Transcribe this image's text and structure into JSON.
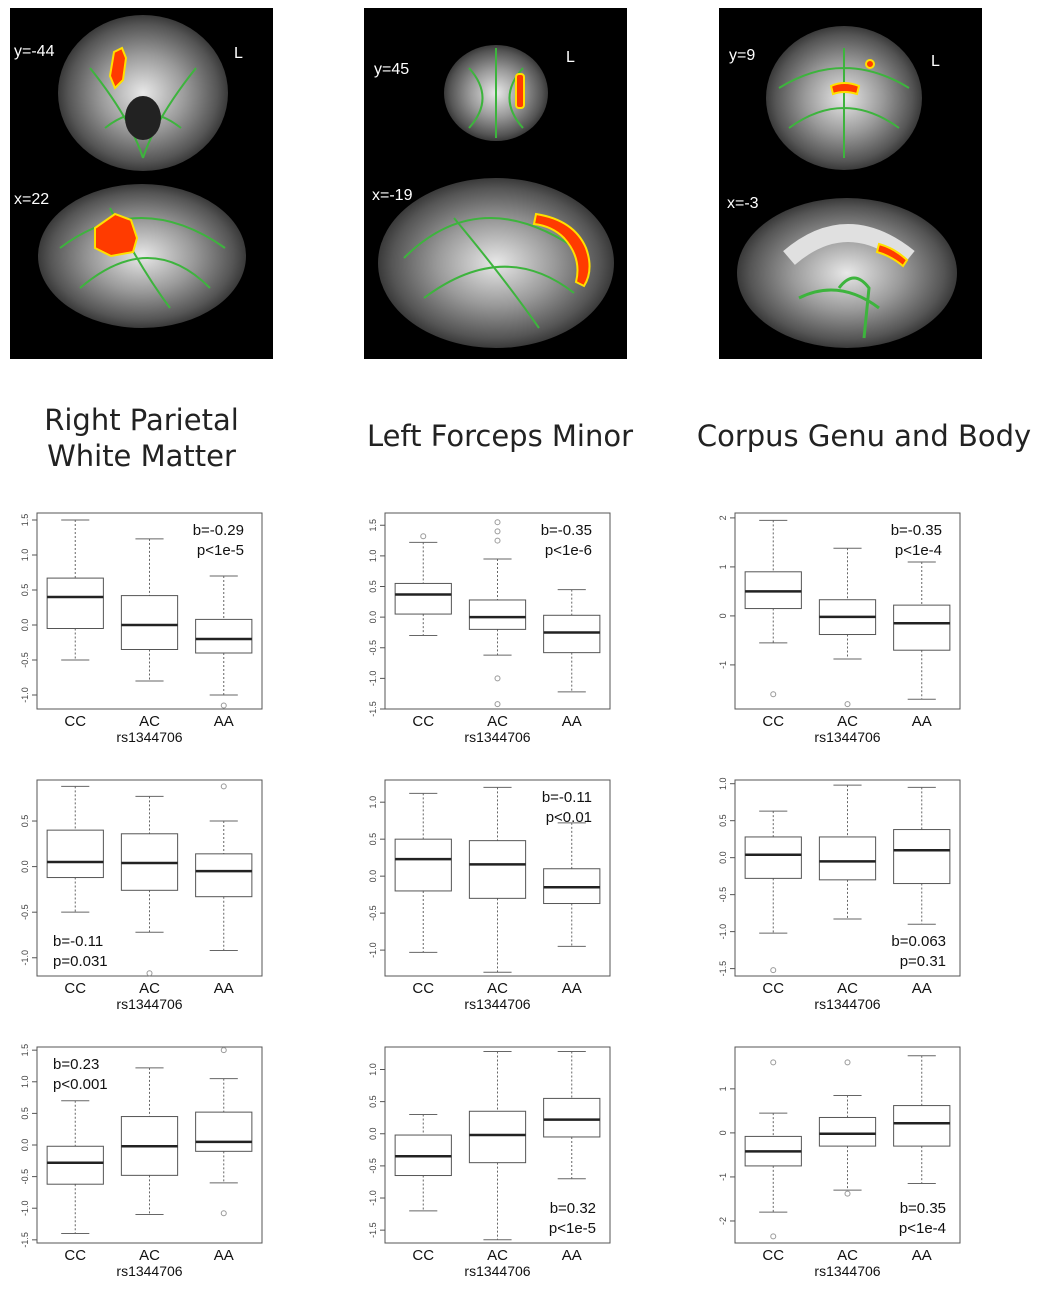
{
  "brain_panels": [
    {
      "coords": [
        "y=-44",
        "x=22"
      ],
      "side_label": "L"
    },
    {
      "coords": [
        "y=45",
        "x=-19"
      ],
      "side_label": "L"
    },
    {
      "coords": [
        "y=9",
        "x=-3"
      ],
      "side_label": "L"
    }
  ],
  "column_titles": [
    [
      "Right Parietal",
      "White Matter"
    ],
    [
      "Left Forceps Minor"
    ],
    [
      "Corpus Genu and Body"
    ]
  ],
  "chart_data": [
    {
      "type": "box",
      "col": 0,
      "row": 0,
      "categories": [
        "CC",
        "AC",
        "AA"
      ],
      "xlabel": "rs1344706",
      "ylim": [
        -1.2,
        1.6
      ],
      "ticks": [
        "1.5",
        "1.0",
        "0.5",
        "0.0",
        "-0.5",
        "-1.0"
      ],
      "tickvals": [
        1.5,
        1.0,
        0.5,
        0.0,
        -0.5,
        -1.0
      ],
      "annotation": [
        "b=-0.29",
        "p<1e-5"
      ],
      "annot_pos": "top-right",
      "boxes": [
        {
          "min": -0.5,
          "q1": -0.05,
          "median": 0.4,
          "q3": 0.67,
          "max": 1.5,
          "outliers": []
        },
        {
          "min": -0.8,
          "q1": -0.35,
          "median": 0.0,
          "q3": 0.42,
          "max": 1.23,
          "outliers": []
        },
        {
          "min": -1.0,
          "q1": -0.4,
          "median": -0.2,
          "q3": 0.08,
          "max": 0.7,
          "outliers": [
            -1.15
          ]
        }
      ]
    },
    {
      "type": "box",
      "col": 1,
      "row": 0,
      "categories": [
        "CC",
        "AC",
        "AA"
      ],
      "xlabel": "rs1344706",
      "ylim": [
        -1.5,
        1.7
      ],
      "ticks": [
        "1.5",
        "1.0",
        "0.5",
        "0.0",
        "-0.5",
        "-1.0",
        "-1.5"
      ],
      "tickvals": [
        1.5,
        1.0,
        0.5,
        0.0,
        -0.5,
        -1.0,
        -1.5
      ],
      "annotation": [
        "b=-0.35",
        "p<1e-6"
      ],
      "annot_pos": "top-right",
      "boxes": [
        {
          "min": -0.3,
          "q1": 0.05,
          "median": 0.37,
          "q3": 0.55,
          "max": 1.22,
          "outliers": [
            1.32
          ]
        },
        {
          "min": -0.62,
          "q1": -0.2,
          "median": 0.0,
          "q3": 0.28,
          "max": 0.95,
          "outliers": [
            1.55,
            1.4,
            1.25,
            -1.0,
            -1.42
          ]
        },
        {
          "min": -1.22,
          "q1": -0.58,
          "median": -0.25,
          "q3": 0.03,
          "max": 0.45,
          "outliers": []
        }
      ]
    },
    {
      "type": "box",
      "col": 2,
      "row": 0,
      "categories": [
        "CC",
        "AC",
        "AA"
      ],
      "xlabel": "rs1344706",
      "ylim": [
        -1.9,
        2.1
      ],
      "ticks": [
        "2",
        "1",
        "0",
        "-1"
      ],
      "tickvals": [
        2,
        1,
        0,
        -1
      ],
      "annotation": [
        "b=-0.35",
        "p<1e-4"
      ],
      "annot_pos": "top-right",
      "boxes": [
        {
          "min": -0.55,
          "q1": 0.15,
          "median": 0.5,
          "q3": 0.9,
          "max": 1.95,
          "outliers": [
            -1.6
          ]
        },
        {
          "min": -0.88,
          "q1": -0.38,
          "median": -0.02,
          "q3": 0.33,
          "max": 1.38,
          "outliers": [
            -1.8
          ]
        },
        {
          "min": -1.7,
          "q1": -0.7,
          "median": -0.15,
          "q3": 0.22,
          "max": 1.1,
          "outliers": []
        }
      ]
    },
    {
      "type": "box",
      "col": 0,
      "row": 1,
      "categories": [
        "CC",
        "AC",
        "AA"
      ],
      "xlabel": "rs1344706",
      "ylim": [
        -1.2,
        0.95
      ],
      "ticks": [
        "0.5",
        "0.0",
        "-0.5",
        "-1.0"
      ],
      "tickvals": [
        0.5,
        0.0,
        -0.5,
        -1.0
      ],
      "annotation": [
        "b=-0.11",
        "p=0.031"
      ],
      "annot_pos": "bottom-left",
      "boxes": [
        {
          "min": -0.5,
          "q1": -0.12,
          "median": 0.05,
          "q3": 0.4,
          "max": 0.88,
          "outliers": []
        },
        {
          "min": -0.72,
          "q1": -0.26,
          "median": 0.04,
          "q3": 0.36,
          "max": 0.77,
          "outliers": [
            -1.17
          ]
        },
        {
          "min": -0.92,
          "q1": -0.33,
          "median": -0.05,
          "q3": 0.14,
          "max": 0.5,
          "outliers": [
            0.88
          ]
        }
      ]
    },
    {
      "type": "box",
      "col": 1,
      "row": 1,
      "categories": [
        "CC",
        "AC",
        "AA"
      ],
      "xlabel": "rs1344706",
      "ylim": [
        -1.35,
        1.3
      ],
      "ticks": [
        "1.0",
        "0.5",
        "0.0",
        "-0.5",
        "-1.0"
      ],
      "tickvals": [
        1.0,
        0.5,
        0.0,
        -0.5,
        -1.0
      ],
      "annotation": [
        "b=-0.11",
        "p<0.01"
      ],
      "annot_pos": "top-right",
      "boxes": [
        {
          "min": -1.03,
          "q1": -0.2,
          "median": 0.23,
          "q3": 0.5,
          "max": 1.12,
          "outliers": []
        },
        {
          "min": -1.3,
          "q1": -0.3,
          "median": 0.16,
          "q3": 0.48,
          "max": 1.2,
          "outliers": []
        },
        {
          "min": -0.95,
          "q1": -0.37,
          "median": -0.15,
          "q3": 0.1,
          "max": 0.72,
          "outliers": []
        }
      ]
    },
    {
      "type": "box",
      "col": 2,
      "row": 1,
      "categories": [
        "CC",
        "AC",
        "AA"
      ],
      "xlabel": "rs1344706",
      "ylim": [
        -1.6,
        1.05
      ],
      "ticks": [
        "1.0",
        "0.5",
        "0.0",
        "-0.5",
        "-1.0",
        "-1.5"
      ],
      "tickvals": [
        1.0,
        0.5,
        0.0,
        -0.5,
        -1.0,
        -1.5
      ],
      "annotation": [
        "b=0.063",
        "p=0.31"
      ],
      "annot_pos": "bottom-right",
      "boxes": [
        {
          "min": -1.02,
          "q1": -0.28,
          "median": 0.04,
          "q3": 0.28,
          "max": 0.63,
          "outliers": [
            -1.52
          ]
        },
        {
          "min": -0.83,
          "q1": -0.3,
          "median": -0.05,
          "q3": 0.28,
          "max": 0.98,
          "outliers": []
        },
        {
          "min": -0.9,
          "q1": -0.35,
          "median": 0.1,
          "q3": 0.38,
          "max": 0.95,
          "outliers": []
        }
      ]
    },
    {
      "type": "box",
      "col": 0,
      "row": 2,
      "categories": [
        "CC",
        "AC",
        "AA"
      ],
      "xlabel": "rs1344706",
      "ylim": [
        -1.55,
        1.55
      ],
      "ticks": [
        "1.5",
        "1.0",
        "0.5",
        "0.0",
        "-0.5",
        "-1.0",
        "-1.5"
      ],
      "tickvals": [
        1.5,
        1.0,
        0.5,
        0.0,
        -0.5,
        -1.0,
        -1.5
      ],
      "annotation": [
        "b=0.23",
        "p<0.001"
      ],
      "annot_pos": "top-left",
      "boxes": [
        {
          "min": -1.4,
          "q1": -0.62,
          "median": -0.28,
          "q3": -0.02,
          "max": 0.7,
          "outliers": []
        },
        {
          "min": -1.1,
          "q1": -0.48,
          "median": -0.02,
          "q3": 0.45,
          "max": 1.22,
          "outliers": []
        },
        {
          "min": -0.6,
          "q1": -0.1,
          "median": 0.05,
          "q3": 0.52,
          "max": 1.05,
          "outliers": [
            1.5,
            -1.08
          ]
        }
      ]
    },
    {
      "type": "box",
      "col": 1,
      "row": 2,
      "categories": [
        "CC",
        "AC",
        "AA"
      ],
      "xlabel": "rs1344706",
      "ylim": [
        -1.7,
        1.35
      ],
      "ticks": [
        "1.0",
        "0.5",
        "0.0",
        "-0.5",
        "-1.0",
        "-1.5"
      ],
      "tickvals": [
        1.0,
        0.5,
        0.0,
        -0.5,
        -1.0,
        -1.5
      ],
      "annotation": [
        "b=0.32",
        "p<1e-5"
      ],
      "annot_pos": "bottom-right",
      "boxes": [
        {
          "min": -1.2,
          "q1": -0.65,
          "median": -0.35,
          "q3": -0.02,
          "max": 0.3,
          "outliers": []
        },
        {
          "min": -1.65,
          "q1": -0.45,
          "median": -0.02,
          "q3": 0.35,
          "max": 1.28,
          "outliers": []
        },
        {
          "min": -0.7,
          "q1": -0.05,
          "median": 0.22,
          "q3": 0.55,
          "max": 1.28,
          "outliers": []
        }
      ]
    },
    {
      "type": "box",
      "col": 2,
      "row": 2,
      "categories": [
        "CC",
        "AC",
        "AA"
      ],
      "xlabel": "rs1344706",
      "ylim": [
        -2.5,
        1.95
      ],
      "ticks": [
        "1",
        "0",
        "-1",
        "-2"
      ],
      "tickvals": [
        1,
        0,
        -1,
        -2
      ],
      "annotation": [
        "b=0.35",
        "p<1e-4"
      ],
      "annot_pos": "bottom-right",
      "boxes": [
        {
          "min": -1.8,
          "q1": -0.75,
          "median": -0.42,
          "q3": -0.08,
          "max": 0.45,
          "outliers": [
            1.6,
            -2.35
          ]
        },
        {
          "min": -1.3,
          "q1": -0.3,
          "median": -0.02,
          "q3": 0.35,
          "max": 0.85,
          "outliers": [
            1.6,
            -1.38
          ]
        },
        {
          "min": -1.15,
          "q1": -0.3,
          "median": 0.22,
          "q3": 0.62,
          "max": 1.75,
          "outliers": []
        }
      ]
    }
  ]
}
